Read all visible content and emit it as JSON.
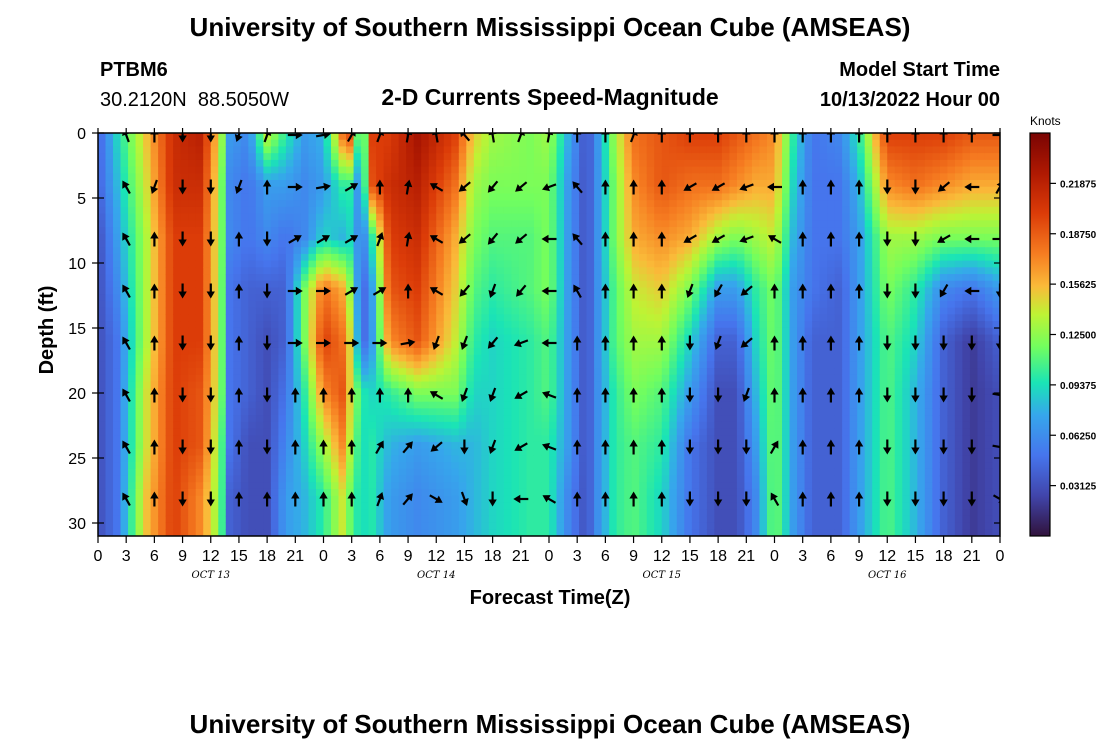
{
  "chart_data": {
    "type": "heatmap",
    "title": "University of Southern Mississippi Ocean Cube (AMSEAS)",
    "subtitle": "2-D Currents Speed-Magnitude",
    "station": {
      "id": "PTBM6",
      "coords": "30.2120N  88.5050W"
    },
    "model_start": {
      "label": "Model Start Time",
      "value": "10/13/2022 Hour 00"
    },
    "xlabel": "Forecast Time(Z)",
    "ylabel": "Depth (ft)",
    "x_hours_range": [
      0,
      96
    ],
    "ylim": [
      0,
      31
    ],
    "x_ticks_hours": [
      0,
      3,
      6,
      9,
      12,
      15,
      18,
      21,
      24,
      27,
      30,
      33,
      36,
      39,
      42,
      45,
      48,
      51,
      54,
      57,
      60,
      63,
      66,
      69,
      72,
      75,
      78,
      81,
      84,
      87,
      90,
      93,
      96
    ],
    "x_tick_labels": [
      "0",
      "3",
      "6",
      "9",
      "12",
      "15",
      "18",
      "21",
      "0",
      "3",
      "6",
      "9",
      "12",
      "15",
      "18",
      "21",
      "0",
      "3",
      "6",
      "9",
      "12",
      "15",
      "18",
      "21",
      "0",
      "3",
      "6",
      "9",
      "12",
      "15",
      "18",
      "21",
      "0"
    ],
    "y_ticks": [
      0,
      5,
      10,
      15,
      20,
      25,
      30
    ],
    "y_tick_labels": [
      "0",
      "5",
      "10",
      "15",
      "20",
      "25",
      "30"
    ],
    "date_labels": [
      {
        "hour": 12,
        "label": "OCT 13"
      },
      {
        "hour": 36,
        "label": "OCT 14"
      },
      {
        "hour": 60,
        "label": "OCT 15"
      },
      {
        "hour": 84,
        "label": "OCT 16"
      }
    ],
    "colorbar": {
      "units": "Knots",
      "range": [
        0.0,
        0.25
      ],
      "ticks": [
        0.03125,
        0.0625,
        0.09375,
        0.125,
        0.15625,
        0.1875,
        0.21875
      ],
      "tick_labels": [
        "0.03125",
        "0.06250",
        "0.09375",
        "0.12500",
        "0.15625",
        "0.18750",
        "0.21875"
      ]
    },
    "speed_profiles": [
      {
        "hour": 0,
        "speed": [
          0.04,
          0.04,
          0.03,
          0.03,
          0.03,
          0.03,
          0.03,
          0.03
        ]
      },
      {
        "hour": 2,
        "speed": [
          0.09,
          0.08,
          0.07,
          0.06,
          0.05,
          0.05,
          0.05,
          0.05
        ]
      },
      {
        "hour": 5,
        "speed": [
          0.15,
          0.14,
          0.13,
          0.13,
          0.13,
          0.14,
          0.14,
          0.15
        ]
      },
      {
        "hour": 8,
        "speed": [
          0.21,
          0.21,
          0.2,
          0.2,
          0.2,
          0.2,
          0.2,
          0.2
        ]
      },
      {
        "hour": 11,
        "speed": [
          0.22,
          0.21,
          0.2,
          0.2,
          0.2,
          0.19,
          0.19,
          0.17
        ]
      },
      {
        "hour": 13,
        "speed": [
          0.14,
          0.13,
          0.13,
          0.13,
          0.13,
          0.13,
          0.12,
          0.12
        ]
      },
      {
        "hour": 14,
        "speed": [
          0.07,
          0.06,
          0.06,
          0.05,
          0.05,
          0.05,
          0.05,
          0.04
        ]
      },
      {
        "hour": 16,
        "speed": [
          0.06,
          0.05,
          0.05,
          0.04,
          0.04,
          0.04,
          0.03,
          0.03
        ]
      },
      {
        "hour": 18,
        "speed": [
          0.14,
          0.07,
          0.06,
          0.04,
          0.03,
          0.03,
          0.03,
          0.03
        ]
      },
      {
        "hour": 20,
        "speed": [
          0.1,
          0.07,
          0.05,
          0.04,
          0.04,
          0.05,
          0.06,
          0.07
        ]
      },
      {
        "hour": 22,
        "speed": [
          0.07,
          0.06,
          0.06,
          0.12,
          0.12,
          0.1,
          0.09,
          0.08
        ]
      },
      {
        "hour": 24,
        "speed": [
          0.08,
          0.07,
          0.09,
          0.18,
          0.2,
          0.17,
          0.13,
          0.1
        ]
      },
      {
        "hour": 26,
        "speed": [
          0.18,
          0.1,
          0.08,
          0.16,
          0.18,
          0.19,
          0.17,
          0.14
        ]
      },
      {
        "hour": 27,
        "speed": [
          0.2,
          0.1,
          0.09,
          0.12,
          0.14,
          0.14,
          0.13,
          0.11
        ]
      },
      {
        "hour": 28,
        "speed": [
          0.06,
          0.05,
          0.05,
          0.04,
          0.04,
          0.1,
          0.09,
          0.09
        ]
      },
      {
        "hour": 29,
        "speed": [
          0.2,
          0.19,
          0.09,
          0.06,
          0.06,
          0.09,
          0.1,
          0.1
        ]
      },
      {
        "hour": 31,
        "speed": [
          0.2,
          0.21,
          0.2,
          0.19,
          0.17,
          0.1,
          0.08,
          0.07
        ]
      },
      {
        "hour": 34,
        "speed": [
          0.23,
          0.22,
          0.21,
          0.2,
          0.19,
          0.12,
          0.07,
          0.06
        ]
      },
      {
        "hour": 38,
        "speed": [
          0.2,
          0.18,
          0.16,
          0.15,
          0.14,
          0.12,
          0.08,
          0.07
        ]
      },
      {
        "hour": 40,
        "speed": [
          0.15,
          0.13,
          0.12,
          0.11,
          0.1,
          0.09,
          0.08,
          0.08
        ]
      },
      {
        "hour": 42,
        "speed": [
          0.13,
          0.12,
          0.11,
          0.1,
          0.09,
          0.09,
          0.09,
          0.09
        ]
      },
      {
        "hour": 46,
        "speed": [
          0.12,
          0.12,
          0.11,
          0.11,
          0.1,
          0.1,
          0.1,
          0.1
        ]
      },
      {
        "hour": 48,
        "speed": [
          0.13,
          0.12,
          0.12,
          0.12,
          0.11,
          0.11,
          0.1,
          0.1
        ]
      },
      {
        "hour": 50,
        "speed": [
          0.08,
          0.07,
          0.07,
          0.07,
          0.07,
          0.07,
          0.07,
          0.06
        ]
      },
      {
        "hour": 52,
        "speed": [
          0.03,
          0.03,
          0.03,
          0.03,
          0.03,
          0.03,
          0.03,
          0.03
        ]
      },
      {
        "hour": 53,
        "speed": [
          0.06,
          0.06,
          0.06,
          0.06,
          0.06,
          0.06,
          0.06,
          0.06
        ]
      },
      {
        "hour": 55,
        "speed": [
          0.13,
          0.12,
          0.12,
          0.11,
          0.11,
          0.1,
          0.1,
          0.1
        ]
      },
      {
        "hour": 57,
        "speed": [
          0.18,
          0.17,
          0.16,
          0.14,
          0.13,
          0.12,
          0.11,
          0.11
        ]
      },
      {
        "hour": 60,
        "speed": [
          0.19,
          0.19,
          0.17,
          0.15,
          0.13,
          0.11,
          0.1,
          0.09
        ]
      },
      {
        "hour": 63,
        "speed": [
          0.2,
          0.18,
          0.16,
          0.12,
          0.09,
          0.07,
          0.05,
          0.05
        ]
      },
      {
        "hour": 66,
        "speed": [
          0.2,
          0.18,
          0.13,
          0.07,
          0.04,
          0.03,
          0.03,
          0.03
        ]
      },
      {
        "hour": 68,
        "speed": [
          0.19,
          0.17,
          0.12,
          0.07,
          0.04,
          0.03,
          0.03,
          0.03
        ]
      },
      {
        "hour": 70,
        "speed": [
          0.18,
          0.16,
          0.13,
          0.1,
          0.09,
          0.08,
          0.07,
          0.06
        ]
      },
      {
        "hour": 72,
        "speed": [
          0.17,
          0.16,
          0.14,
          0.12,
          0.12,
          0.12,
          0.12,
          0.12
        ]
      },
      {
        "hour": 74,
        "speed": [
          0.1,
          0.09,
          0.08,
          0.07,
          0.07,
          0.07,
          0.07,
          0.07
        ]
      },
      {
        "hour": 76,
        "speed": [
          0.05,
          0.05,
          0.05,
          0.05,
          0.04,
          0.04,
          0.04,
          0.04
        ]
      },
      {
        "hour": 79,
        "speed": [
          0.06,
          0.05,
          0.05,
          0.04,
          0.04,
          0.04,
          0.04,
          0.04
        ]
      },
      {
        "hour": 81,
        "speed": [
          0.1,
          0.08,
          0.07,
          0.07,
          0.07,
          0.07,
          0.07,
          0.07
        ]
      },
      {
        "hour": 84,
        "speed": [
          0.2,
          0.17,
          0.13,
          0.12,
          0.11,
          0.11,
          0.11,
          0.11
        ]
      },
      {
        "hour": 87,
        "speed": [
          0.2,
          0.18,
          0.13,
          0.1,
          0.09,
          0.08,
          0.08,
          0.08
        ]
      },
      {
        "hour": 90,
        "speed": [
          0.2,
          0.17,
          0.12,
          0.06,
          0.04,
          0.04,
          0.04,
          0.04
        ]
      },
      {
        "hour": 93,
        "speed": [
          0.19,
          0.16,
          0.12,
          0.05,
          0.02,
          0.02,
          0.02,
          0.02
        ]
      },
      {
        "hour": 96,
        "speed": [
          0.19,
          0.16,
          0.12,
          0.07,
          0.04,
          0.03,
          0.03,
          0.03
        ]
      }
    ],
    "profile_depths_ft": [
      0,
      4,
      8,
      12,
      16,
      20,
      24,
      28
    ],
    "vector_depths_ft": [
      0,
      4,
      8,
      12,
      16,
      20,
      24,
      28
    ],
    "vector_hours": [
      3,
      6,
      9,
      12,
      15,
      18,
      21,
      24,
      27,
      30,
      33,
      36,
      39,
      42,
      45,
      48,
      51,
      54,
      57,
      60,
      63,
      66,
      69,
      72,
      75,
      78,
      81,
      84,
      87,
      90,
      93,
      96
    ],
    "vectors_deg": [
      [
        340,
        0,
        180,
        180,
        200,
        20,
        90,
        80,
        30,
        20,
        10,
        350,
        320,
        350,
        20,
        10,
        0,
        0,
        20,
        0,
        0,
        0,
        0,
        0,
        0,
        0,
        0,
        0,
        0,
        0,
        0,
        90
      ],
      [
        330,
        200,
        180,
        180,
        200,
        0,
        90,
        80,
        60,
        0,
        10,
        300,
        230,
        220,
        230,
        250,
        320,
        0,
        0,
        0,
        240,
        240,
        250,
        270,
        0,
        0,
        0,
        180,
        180,
        230,
        270,
        30
      ],
      [
        330,
        0,
        180,
        180,
        0,
        180,
        60,
        60,
        60,
        20,
        10,
        300,
        230,
        220,
        230,
        270,
        320,
        0,
        0,
        0,
        240,
        240,
        250,
        300,
        0,
        0,
        0,
        180,
        180,
        240,
        270,
        90
      ],
      [
        330,
        0,
        180,
        180,
        0,
        180,
        90,
        90,
        60,
        60,
        0,
        300,
        220,
        200,
        220,
        270,
        330,
        0,
        0,
        0,
        200,
        210,
        230,
        0,
        0,
        0,
        0,
        180,
        180,
        210,
        270,
        180
      ],
      [
        330,
        0,
        180,
        180,
        0,
        180,
        90,
        90,
        90,
        90,
        80,
        200,
        200,
        220,
        250,
        270,
        0,
        0,
        0,
        0,
        180,
        200,
        230,
        0,
        0,
        0,
        0,
        180,
        180,
        180,
        180,
        180
      ],
      [
        330,
        0,
        180,
        180,
        0,
        180,
        0,
        0,
        0,
        0,
        0,
        300,
        200,
        200,
        240,
        290,
        0,
        0,
        0,
        0,
        180,
        180,
        200,
        0,
        0,
        0,
        0,
        180,
        180,
        180,
        180,
        100
      ],
      [
        330,
        0,
        180,
        180,
        0,
        180,
        0,
        0,
        0,
        30,
        40,
        230,
        180,
        200,
        240,
        290,
        0,
        0,
        0,
        0,
        180,
        180,
        180,
        30,
        0,
        0,
        0,
        180,
        180,
        180,
        180,
        100
      ],
      [
        330,
        0,
        180,
        180,
        0,
        0,
        0,
        0,
        0,
        20,
        40,
        120,
        160,
        180,
        270,
        300,
        0,
        0,
        0,
        0,
        180,
        180,
        180,
        330,
        0,
        0,
        0,
        180,
        180,
        180,
        180,
        120
      ]
    ]
  }
}
